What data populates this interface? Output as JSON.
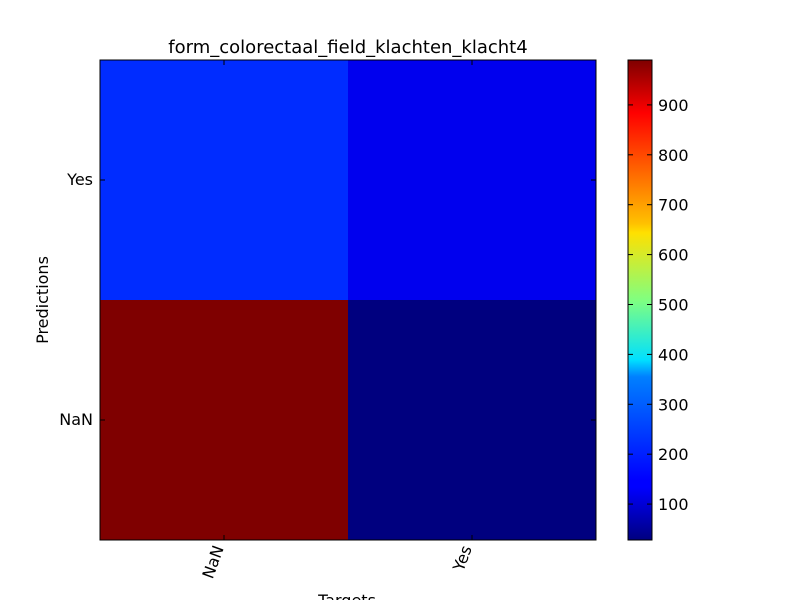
{
  "chart_data": {
    "type": "heatmap",
    "title": "form_colorectaal_field_klachten_klacht4",
    "xlabel": "Targets",
    "ylabel": "Predictions",
    "x_categories": [
      "NaN",
      "Yes"
    ],
    "y_categories": [
      "Yes",
      "NaN"
    ],
    "values": [
      [
        220,
        120
      ],
      [
        990,
        28
      ]
    ],
    "colormap": "jet",
    "colorbar": {
      "min": 28,
      "max": 990,
      "ticks": [
        100,
        200,
        300,
        400,
        500,
        600,
        700,
        800,
        900
      ]
    },
    "x_tick_rotation_deg": -70,
    "grid": false,
    "legend": "none"
  }
}
